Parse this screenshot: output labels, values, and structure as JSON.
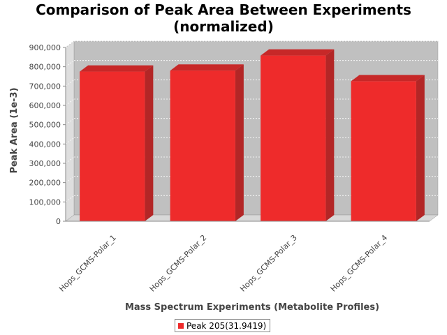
{
  "chart_data": {
    "type": "bar",
    "title": "Comparison of Peak Area Between Experiments\n(normalized)",
    "title_lines": [
      "Comparison of Peak Area Between Experiments",
      "(normalized)"
    ],
    "xlabel": "Mass Spectrum Experiments (Metabolite Profiles)",
    "ylabel": "Peak Area (1e-3)",
    "categories": [
      "Hops_GCMS-Polar_1",
      "Hops_GCMS-Polar_2",
      "Hops_GCMS-Polar_3",
      "Hops_GCMS-Polar_4"
    ],
    "series": [
      {
        "name": "Peak 205(31.9419)",
        "values": [
          775000,
          780000,
          858000,
          725000
        ],
        "color": "#ee2b2b"
      }
    ],
    "ylim": [
      0,
      900000
    ],
    "yticks": [
      0,
      100000,
      200000,
      300000,
      400000,
      500000,
      600000,
      700000,
      800000,
      900000
    ],
    "ytick_labels": [
      "0",
      "100,000",
      "200,000",
      "300,000",
      "400,000",
      "500,000",
      "600,000",
      "700,000",
      "800,000",
      "900,000"
    ],
    "grid": true,
    "style": "3d",
    "legend_position": "bottom",
    "colors": {
      "plot_background": "#c0c0c0",
      "gridline": "#ffffff",
      "bar": "#ee2b2b",
      "bar_side": "#b32626",
      "bar_top": "#c72828"
    }
  }
}
